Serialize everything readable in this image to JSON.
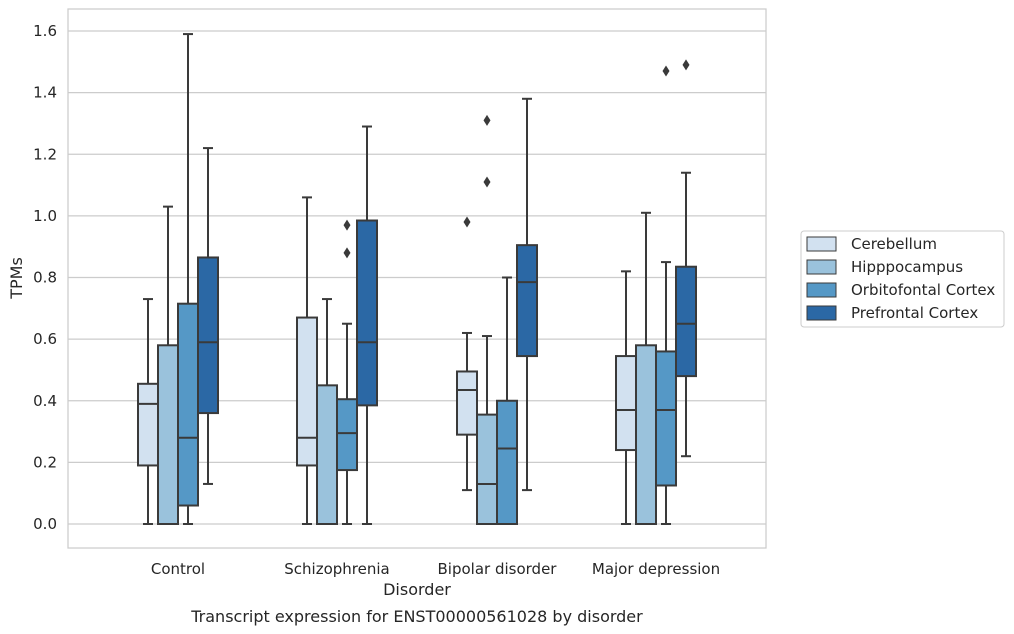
{
  "caption": "Transcript expression for ENST00000561028 by disorder",
  "chart_data": {
    "type": "box",
    "xlabel": "Disorder",
    "ylabel": "TPMs",
    "ylim": [
      -0.08,
      1.67
    ],
    "yticks": [
      0.0,
      0.2,
      0.4,
      0.6,
      0.8,
      1.0,
      1.2,
      1.4,
      1.6
    ],
    "ytick_labels": [
      "0.0",
      "0.2",
      "0.4",
      "0.6",
      "0.8",
      "1.0",
      "1.2",
      "1.4",
      "1.6"
    ],
    "grid": "horizontal",
    "legend_position": "right",
    "categories": [
      "Control",
      "Schizophrenia",
      "Bipolar disorder",
      "Major depression"
    ],
    "series": [
      {
        "name": "Cerebellum",
        "color": "#d2e1f0",
        "boxes": [
          {
            "whisker_low": 0.0,
            "q1": 0.19,
            "median": 0.39,
            "q3": 0.455,
            "whisker_high": 0.73,
            "outliers": []
          },
          {
            "whisker_low": 0.0,
            "q1": 0.19,
            "median": 0.28,
            "q3": 0.67,
            "whisker_high": 1.06,
            "outliers": []
          },
          {
            "whisker_low": 0.11,
            "q1": 0.29,
            "median": 0.435,
            "q3": 0.495,
            "whisker_high": 0.62,
            "outliers": [
              0.98
            ]
          },
          {
            "whisker_low": 0.0,
            "q1": 0.24,
            "median": 0.37,
            "q3": 0.545,
            "whisker_high": 0.82,
            "outliers": []
          }
        ]
      },
      {
        "name": "Hipppocampus",
        "color": "#9ac2dc",
        "boxes": [
          {
            "whisker_low": 0.0,
            "q1": 0.0,
            "median": 0.0,
            "q3": 0.58,
            "whisker_high": 1.03,
            "outliers": []
          },
          {
            "whisker_low": 0.0,
            "q1": 0.0,
            "median": 0.0,
            "q3": 0.45,
            "whisker_high": 0.73,
            "outliers": []
          },
          {
            "whisker_low": 0.0,
            "q1": 0.0,
            "median": 0.13,
            "q3": 0.355,
            "whisker_high": 0.61,
            "outliers": [
              1.11,
              1.31
            ]
          },
          {
            "whisker_low": 0.0,
            "q1": 0.0,
            "median": 0.0,
            "q3": 0.58,
            "whisker_high": 1.01,
            "outliers": []
          }
        ]
      },
      {
        "name": "Orbitofontal Cortex",
        "color": "#5598c6",
        "boxes": [
          {
            "whisker_low": 0.0,
            "q1": 0.06,
            "median": 0.28,
            "q3": 0.715,
            "whisker_high": 1.59,
            "outliers": []
          },
          {
            "whisker_low": 0.0,
            "q1": 0.175,
            "median": 0.295,
            "q3": 0.405,
            "whisker_high": 0.65,
            "outliers": [
              0.88,
              0.97
            ]
          },
          {
            "whisker_low": 0.0,
            "q1": 0.0,
            "median": 0.245,
            "q3": 0.4,
            "whisker_high": 0.8,
            "outliers": []
          },
          {
            "whisker_low": 0.0,
            "q1": 0.125,
            "median": 0.37,
            "q3": 0.56,
            "whisker_high": 0.85,
            "outliers": [
              1.47
            ]
          }
        ]
      },
      {
        "name": "Prefrontal Cortex",
        "color": "#2b68a5",
        "boxes": [
          {
            "whisker_low": 0.13,
            "q1": 0.36,
            "median": 0.59,
            "q3": 0.865,
            "whisker_high": 1.22,
            "outliers": []
          },
          {
            "whisker_low": 0.0,
            "q1": 0.385,
            "median": 0.59,
            "q3": 0.985,
            "whisker_high": 1.29,
            "outliers": []
          },
          {
            "whisker_low": 0.11,
            "q1": 0.545,
            "median": 0.785,
            "q3": 0.905,
            "whisker_high": 1.38,
            "outliers": []
          },
          {
            "whisker_low": 0.22,
            "q1": 0.48,
            "median": 0.65,
            "q3": 0.835,
            "whisker_high": 1.14,
            "outliers": [
              1.49
            ]
          }
        ]
      }
    ]
  }
}
